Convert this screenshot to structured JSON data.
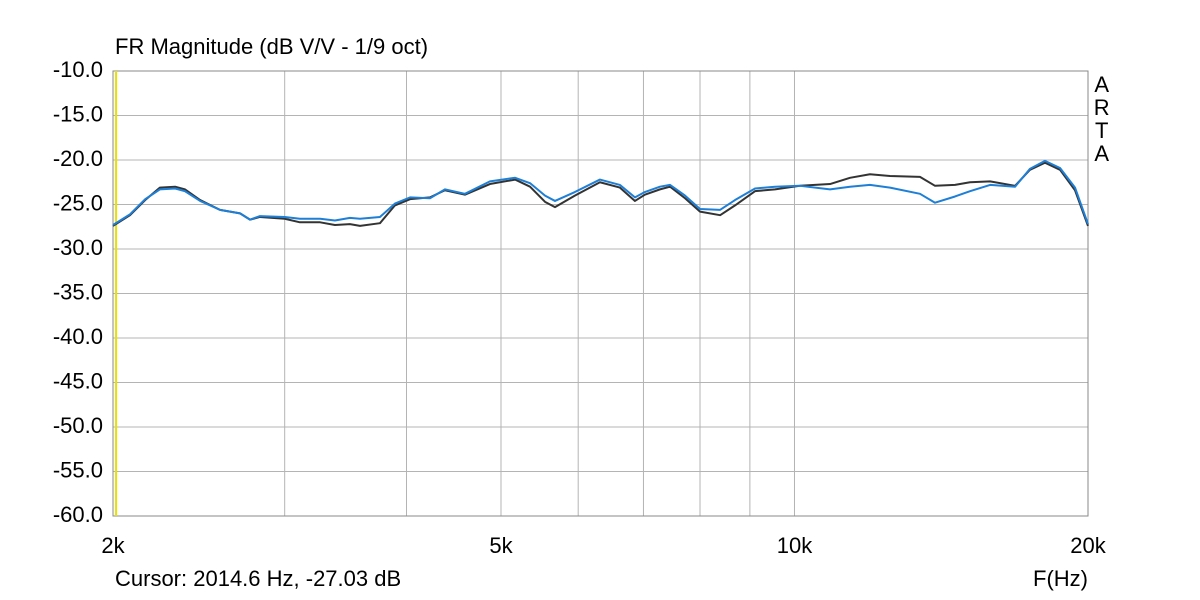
{
  "chart_data": {
    "type": "line",
    "title": "FR Magnitude (dB V/V - 1/9 oct)",
    "watermark": "ARTA",
    "xlabel": "F(Hz)",
    "cursor": {
      "label": "Cursor: 2014.6 Hz, -27.03 dB",
      "x": 2014.6,
      "color": "#e8e000"
    },
    "xscale": "log",
    "grid": true,
    "xlim": [
      2000,
      20000
    ],
    "xticks": [
      {
        "value": 2000,
        "label": "2k"
      },
      {
        "value": 5000,
        "label": "5k"
      },
      {
        "value": 10000,
        "label": "10k"
      },
      {
        "value": 20000,
        "label": "20k"
      }
    ],
    "xminor": [
      3000,
      4000,
      6000,
      7000,
      8000,
      9000
    ],
    "ylim": [
      -60,
      -10
    ],
    "yticks": [
      {
        "value": -10,
        "label": "-10.0"
      },
      {
        "value": -15,
        "label": "-15.0"
      },
      {
        "value": -20,
        "label": "-20.0"
      },
      {
        "value": -25,
        "label": "-25.0"
      },
      {
        "value": -30,
        "label": "-30.0"
      },
      {
        "value": -35,
        "label": "-35.0"
      },
      {
        "value": -40,
        "label": "-40.0"
      },
      {
        "value": -45,
        "label": "-45.0"
      },
      {
        "value": -50,
        "label": "-50.0"
      },
      {
        "value": -55,
        "label": "-55.0"
      },
      {
        "value": -60,
        "label": "-60.0"
      }
    ],
    "x": [
      2000,
      2082,
      2158,
      2234,
      2316,
      2370,
      2457,
      2575,
      2700,
      2764,
      2830,
      3000,
      3110,
      3262,
      3378,
      3500,
      3584,
      3757,
      3892,
      4034,
      4228,
      4380,
      4592,
      4871,
      5170,
      5355,
      5548,
      5680,
      5953,
      6316,
      6621,
      6861,
      7023,
      7278,
      7454,
      7722,
      8000,
      8390,
      8690,
      9110,
      9550,
      10130,
      10876,
      11400,
      11950,
      12530,
      13450,
      13936,
      14610,
      15136,
      15872,
      16836,
      17436,
      18068,
      18722,
      19396,
      20000
    ],
    "series": [
      {
        "color": "#333333",
        "values": [
          -27.4,
          -26.2,
          -24.5,
          -23.1,
          -23.0,
          -23.3,
          -24.5,
          -25.6,
          -26.0,
          -26.7,
          -26.4,
          -26.6,
          -27.0,
          -27.0,
          -27.3,
          -27.2,
          -27.4,
          -27.1,
          -25.1,
          -24.4,
          -24.2,
          -23.4,
          -23.9,
          -22.7,
          -22.2,
          -23.0,
          -24.7,
          -25.3,
          -24.0,
          -22.5,
          -23.1,
          -24.6,
          -23.9,
          -23.3,
          -23.0,
          -24.3,
          -25.8,
          -26.2,
          -25.1,
          -23.5,
          -23.3,
          -22.9,
          -22.7,
          -22.0,
          -21.6,
          -21.8,
          -21.9,
          -22.9,
          -22.8,
          -22.5,
          -22.4,
          -22.9,
          -21.1,
          -20.3,
          -21.1,
          -23.4,
          -27.4
        ]
      },
      {
        "color": "#1e7fd6",
        "values": [
          -27.3,
          -26.1,
          -24.4,
          -23.3,
          -23.2,
          -23.5,
          -24.6,
          -25.6,
          -26.0,
          -26.7,
          -26.3,
          -26.4,
          -26.6,
          -26.6,
          -26.8,
          -26.5,
          -26.6,
          -26.4,
          -24.9,
          -24.2,
          -24.3,
          -23.3,
          -23.8,
          -22.4,
          -22.0,
          -22.6,
          -24.0,
          -24.6,
          -23.6,
          -22.2,
          -22.8,
          -24.2,
          -23.6,
          -23.0,
          -22.8,
          -24.0,
          -25.5,
          -25.6,
          -24.5,
          -23.2,
          -23.0,
          -22.9,
          -23.3,
          -23.0,
          -22.8,
          -23.1,
          -23.8,
          -24.8,
          -24.1,
          -23.5,
          -22.8,
          -23.0,
          -21.0,
          -20.1,
          -20.9,
          -23.1,
          -27.2
        ]
      }
    ]
  }
}
